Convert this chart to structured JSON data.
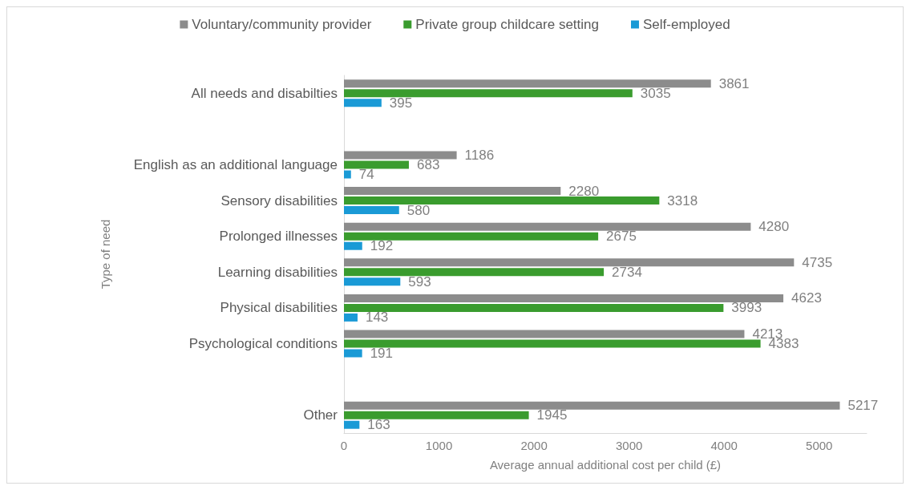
{
  "chart_data": {
    "type": "bar",
    "orientation": "horizontal",
    "xlabel": "Average annual additional cost per child (£)",
    "ylabel": "Type of need",
    "categories": [
      "All needs and disabilties",
      null,
      "English as an additional language",
      "Sensory disabilities",
      "Prolonged illnesses",
      "Learning disabilities",
      "Physical disabilities",
      "Psychological conditions",
      null,
      "Other"
    ],
    "series": [
      {
        "name": "Voluntary/community provider",
        "color": "#8c8c8c",
        "values": [
          3861,
          null,
          1186,
          2280,
          4280,
          4735,
          4623,
          4213,
          null,
          5217
        ]
      },
      {
        "name": "Private group childcare setting",
        "color": "#3a9c2e",
        "values": [
          3035,
          null,
          683,
          3318,
          2675,
          2734,
          3993,
          4383,
          null,
          1945
        ]
      },
      {
        "name": "Self-employed",
        "color": "#1a9ad6",
        "values": [
          395,
          null,
          74,
          580,
          192,
          593,
          143,
          191,
          null,
          163
        ]
      }
    ],
    "xlim": [
      0,
      5500
    ],
    "xticks": [
      0,
      1000,
      2000,
      3000,
      4000,
      5000
    ],
    "grid": false,
    "legend": "top",
    "data_labels": true
  }
}
